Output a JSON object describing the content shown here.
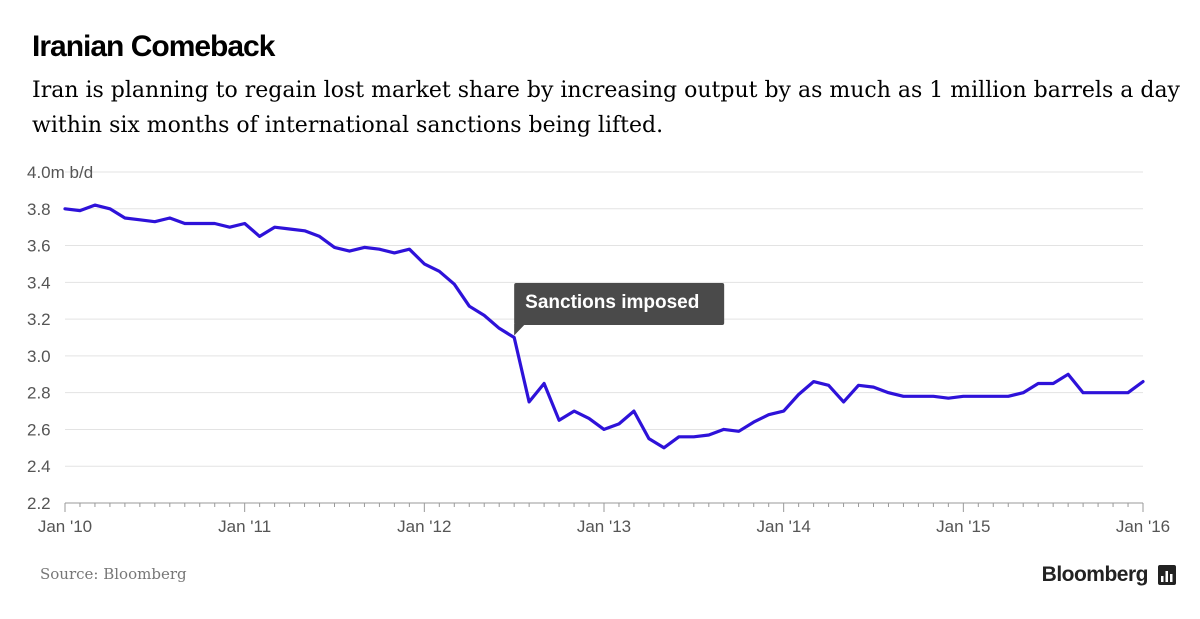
{
  "title": "Iranian Comeback",
  "subtitle": "Iran is planning to regain lost market share by increasing output by as much as 1 million barrels a day within six months of international sanctions being lifted.",
  "source": "Source: Bloomberg",
  "brand": "Bloomberg",
  "colors": {
    "line": "#2e12d9",
    "grid": "#e3e3e3",
    "axis": "#999999",
    "annotation_bg": "#4a4a4a"
  },
  "chart_data": {
    "type": "line",
    "title": "Iranian Comeback",
    "ylabel": "m b/d",
    "ylim": [
      2.2,
      4.0
    ],
    "yticks": [
      2.2,
      2.4,
      2.6,
      2.8,
      3.0,
      3.2,
      3.4,
      3.6,
      3.8,
      4.0
    ],
    "ytick_labels": [
      "2.2",
      "2.4",
      "2.6",
      "2.8",
      "3.0",
      "3.2",
      "3.4",
      "3.6",
      "3.8",
      "4.0m b/d"
    ],
    "xlim": [
      "2010-01",
      "2016-01"
    ],
    "xtick_labels": [
      "Jan '10",
      "Jan '11",
      "Jan '12",
      "Jan '13",
      "Jan '14",
      "Jan '15",
      "Jan '16"
    ],
    "grid": true,
    "series": [
      {
        "x": [
          "2010-01",
          "2010-02",
          "2010-03",
          "2010-04",
          "2010-05",
          "2010-06",
          "2010-07",
          "2010-08",
          "2010-09",
          "2010-10",
          "2010-11",
          "2010-12",
          "2011-01",
          "2011-02",
          "2011-03",
          "2011-04",
          "2011-05",
          "2011-06",
          "2011-07",
          "2011-08",
          "2011-09",
          "2011-10",
          "2011-11",
          "2011-12",
          "2012-01",
          "2012-02",
          "2012-03",
          "2012-04",
          "2012-05",
          "2012-06",
          "2012-07",
          "2012-08",
          "2012-09",
          "2012-10",
          "2012-11",
          "2012-12",
          "2013-01",
          "2013-02",
          "2013-03",
          "2013-04",
          "2013-05",
          "2013-06",
          "2013-07",
          "2013-08",
          "2013-09",
          "2013-10",
          "2013-11",
          "2013-12",
          "2014-01",
          "2014-02",
          "2014-03",
          "2014-04",
          "2014-05",
          "2014-06",
          "2014-07",
          "2014-08",
          "2014-09",
          "2014-10",
          "2014-11",
          "2014-12",
          "2015-01",
          "2015-02",
          "2015-03",
          "2015-04",
          "2015-05",
          "2015-06",
          "2015-07",
          "2015-08",
          "2015-09",
          "2015-10",
          "2015-11",
          "2015-12",
          "2016-01"
        ],
        "values": [
          3.8,
          3.79,
          3.82,
          3.8,
          3.75,
          3.74,
          3.73,
          3.75,
          3.72,
          3.72,
          3.72,
          3.7,
          3.72,
          3.65,
          3.7,
          3.69,
          3.68,
          3.65,
          3.59,
          3.57,
          3.59,
          3.58,
          3.56,
          3.58,
          3.5,
          3.46,
          3.39,
          3.27,
          3.22,
          3.15,
          3.1,
          2.75,
          2.85,
          2.65,
          2.7,
          2.66,
          2.6,
          2.63,
          2.7,
          2.55,
          2.5,
          2.56,
          2.56,
          2.57,
          2.6,
          2.59,
          2.64,
          2.68,
          2.7,
          2.79,
          2.86,
          2.84,
          2.75,
          2.84,
          2.83,
          2.8,
          2.78,
          2.78,
          2.78,
          2.77,
          2.78,
          2.78,
          2.78,
          2.78,
          2.8,
          2.85,
          2.85,
          2.9,
          2.8,
          2.8,
          2.8,
          2.8,
          2.86
        ]
      }
    ],
    "annotations": [
      {
        "text": "Sanctions imposed",
        "x": "2012-07",
        "y": 3.1
      }
    ]
  }
}
